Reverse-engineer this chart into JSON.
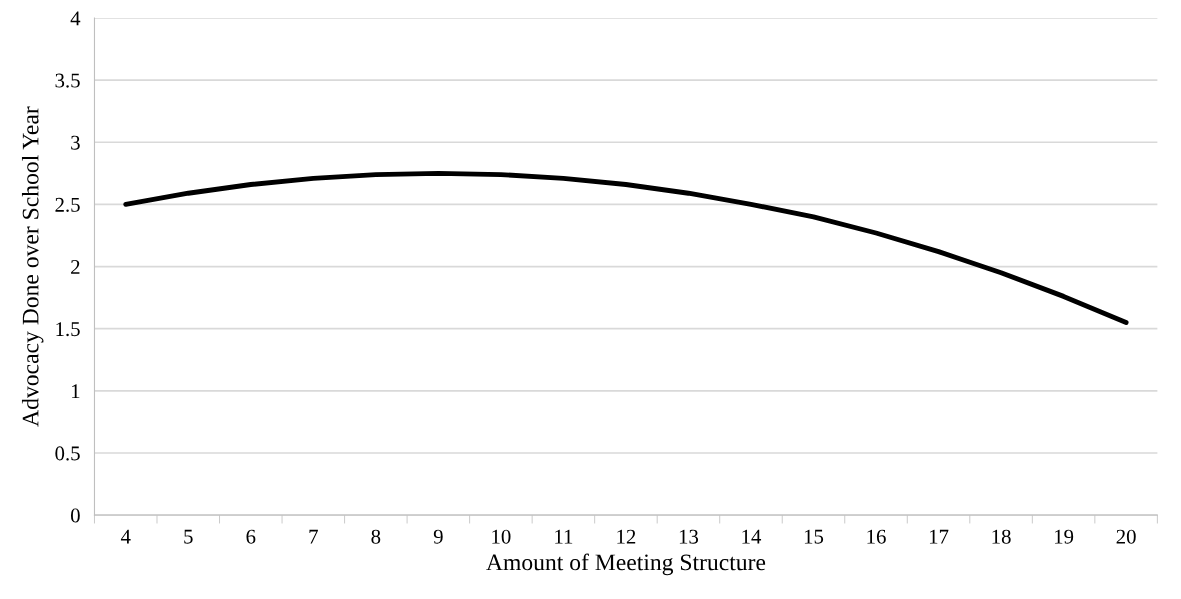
{
  "chart_data": {
    "type": "line",
    "xlabel": "Amount of Meeting Structure",
    "ylabel": "Advocacy Done over School Year",
    "categories": [
      "4",
      "5",
      "6",
      "7",
      "8",
      "9",
      "10",
      "11",
      "12",
      "13",
      "14",
      "15",
      "16",
      "17",
      "18",
      "19",
      "20"
    ],
    "series": [
      {
        "color": "#000000",
        "values": [
          2.5,
          2.59,
          2.66,
          2.71,
          2.74,
          2.75,
          2.74,
          2.71,
          2.66,
          2.59,
          2.5,
          2.4,
          2.27,
          2.12,
          1.95,
          1.76,
          1.55
        ]
      }
    ],
    "ylim": [
      0,
      4
    ],
    "yticks": [
      0,
      0.5,
      1,
      1.5,
      2,
      2.5,
      3,
      3.5,
      4
    ],
    "grid": "y",
    "marker": "none",
    "line_style": "solid"
  }
}
